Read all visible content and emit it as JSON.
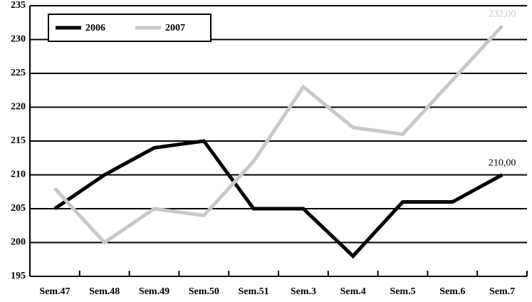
{
  "chart_data": {
    "type": "line",
    "categories": [
      "Sem.47",
      "Sem.48",
      "Sem.49",
      "Sem.50",
      "Sem.51",
      "Sem.3",
      "Sem.4",
      "Sem.5",
      "Sem.6",
      "Sem.7"
    ],
    "series": [
      {
        "name": "2006",
        "color": "#000000",
        "values": [
          205,
          210,
          214,
          215,
          205,
          205,
          198,
          206,
          206,
          210
        ],
        "value_labels": [
          null,
          null,
          null,
          null,
          null,
          null,
          null,
          null,
          null,
          "210,00"
        ]
      },
      {
        "name": "2007",
        "color": "#c8c8c8",
        "values": [
          208,
          200,
          205,
          204,
          212,
          223,
          217,
          216,
          224,
          232
        ],
        "value_labels": [
          null,
          null,
          null,
          null,
          null,
          null,
          null,
          null,
          null,
          "232,00"
        ]
      }
    ],
    "ylim": [
      195,
      235
    ],
    "yticks": [
      195,
      200,
      205,
      210,
      215,
      220,
      225,
      230,
      235
    ],
    "grid": true,
    "legend": "top-left"
  }
}
